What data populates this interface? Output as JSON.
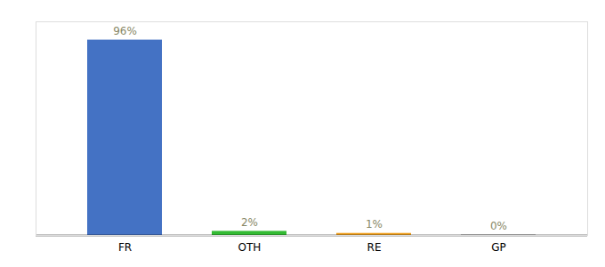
{
  "chart_data": {
    "type": "bar",
    "categories": [
      "FR",
      "OTH",
      "RE",
      "GP"
    ],
    "values": [
      96,
      2,
      1,
      0.3
    ],
    "value_labels": [
      "96%",
      "2%",
      "1%",
      "0%"
    ],
    "colors": [
      "#4472c4",
      "#33bb33",
      "#f0a020",
      "#aaaaaa"
    ],
    "ylim": [
      0,
      105
    ],
    "data_labels": true,
    "tick_labels": "x",
    "grid": false
  }
}
